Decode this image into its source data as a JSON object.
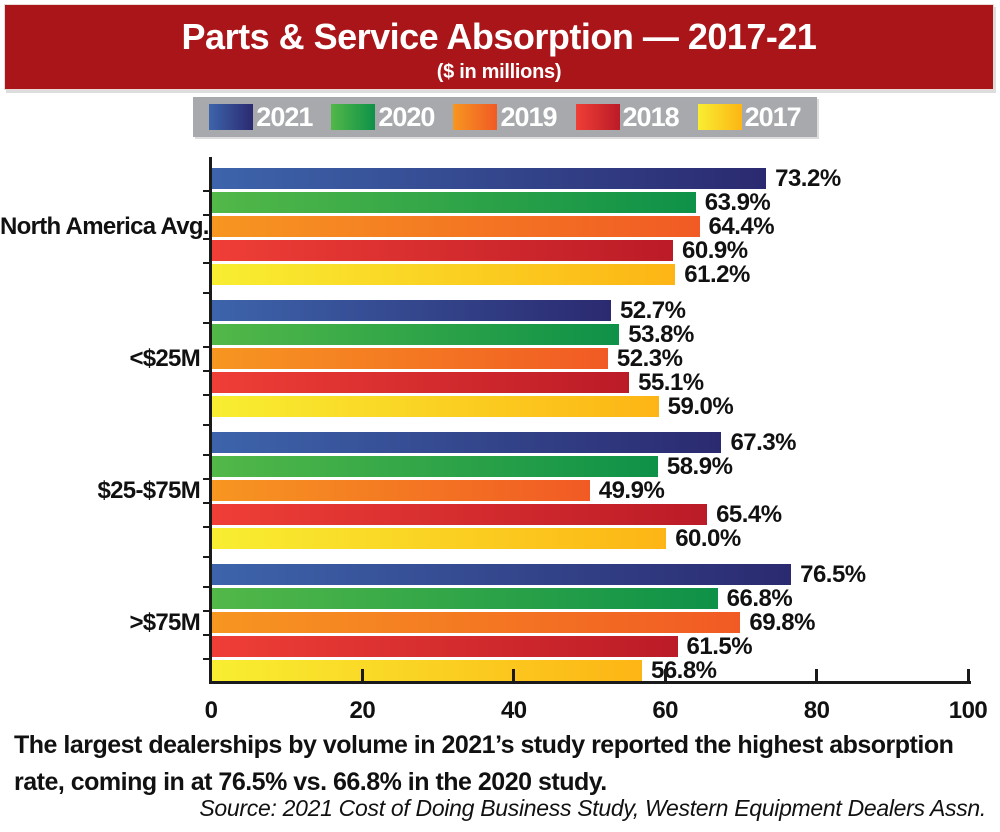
{
  "header": {
    "title": "Parts & Service Absorption — 2017-21",
    "subtitle": "($ in millions)",
    "bg_color": "#a91518"
  },
  "legend": {
    "bg_color": "#a7a9ac",
    "items": [
      {
        "label": "2021",
        "color_start": "#3d64ab",
        "color_end": "#2b2a70"
      },
      {
        "label": "2020",
        "color_start": "#52b848",
        "color_end": "#0e9148"
      },
      {
        "label": "2019",
        "color_start": "#f79621",
        "color_end": "#f15a24"
      },
      {
        "label": "2018",
        "color_start": "#ef3e36",
        "color_end": "#bb1b27"
      },
      {
        "label": "2017",
        "color_start": "#f8ee31",
        "color_end": "#fdb515"
      }
    ]
  },
  "chart_data": {
    "type": "bar",
    "orientation": "horizontal",
    "title": "Parts & Service Absorption — 2017-21",
    "subtitle": "($ in millions)",
    "categories": [
      "North America Avg.",
      "<$25M",
      "$25-$75M",
      ">$75M"
    ],
    "series": [
      {
        "name": "2021",
        "values": [
          73.2,
          52.7,
          67.3,
          76.5
        ]
      },
      {
        "name": "2020",
        "values": [
          63.9,
          53.8,
          58.9,
          66.8
        ]
      },
      {
        "name": "2019",
        "values": [
          64.4,
          52.3,
          49.9,
          69.8
        ]
      },
      {
        "name": "2018",
        "values": [
          60.9,
          55.1,
          65.4,
          61.5
        ]
      },
      {
        "name": "2017",
        "values": [
          61.2,
          59.0,
          60.0,
          56.8
        ]
      }
    ],
    "xlim": [
      0,
      100
    ],
    "xticks": [
      0,
      20,
      40,
      60,
      80,
      100
    ],
    "value_suffix": "%",
    "value_decimals": 1,
    "legend_position": "top",
    "grid": false
  },
  "caption": "The largest dealerships by volume in 2021’s study reported the highest absorption rate, coming in at 76.5% vs. 66.8% in the 2020 study.",
  "source": "Source: 2021 Cost of Doing Business Study, Western Equipment Dealers Assn."
}
